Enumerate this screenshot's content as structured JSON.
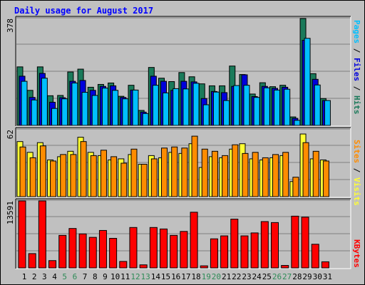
{
  "title": "Daily usage for August 2017",
  "colors": {
    "hits": "#1a7a5a",
    "files": "#0000dd",
    "pages": "#00bfff",
    "visits": "#ffff33",
    "sites": "#ff8c00",
    "kbytes": "#ff0000",
    "weekend_tick": "#2e8b57",
    "weekday_tick": "#000000",
    "panel_bg": "#c0c0c0",
    "grid": "#808080"
  },
  "legends": {
    "top": [
      {
        "text": "Pages",
        "color": "#00bfff"
      },
      {
        "text": " / ",
        "color": "#000000"
      },
      {
        "text": "Files",
        "color": "#0000dd"
      },
      {
        "text": " / ",
        "color": "#000000"
      },
      {
        "text": "Hits",
        "color": "#1a7a5a"
      }
    ],
    "mid": [
      {
        "text": "Sites",
        "color": "#ff8c00"
      },
      {
        "text": " / ",
        "color": "#000000"
      },
      {
        "text": "Visits",
        "color": "#ffff33"
      }
    ],
    "bottom": [
      {
        "text": "KBytes",
        "color": "#ff0000"
      }
    ]
  },
  "chart_data": {
    "type": "bar",
    "categories": [
      "1",
      "2",
      "3",
      "4",
      "5",
      "6",
      "7",
      "8",
      "9",
      "10",
      "11",
      "12",
      "13",
      "14",
      "15",
      "16",
      "17",
      "18",
      "19",
      "20",
      "21",
      "22",
      "23",
      "24",
      "25",
      "26",
      "27",
      "28",
      "29",
      "30",
      "31"
    ],
    "weekend_days": [
      "5",
      "6",
      "12",
      "13",
      "19",
      "20",
      "26",
      "27"
    ],
    "panels": [
      {
        "name": "hits-files-pages",
        "ymax": 378,
        "max_label": "378",
        "series": [
          {
            "name": "Hits",
            "values": [
              207,
              124,
              207,
              105,
              106,
              189,
              199,
              135,
              145,
              150,
              103,
              142,
              53,
              205,
              167,
              155,
              187,
              172,
              147,
              140,
              140,
              210,
              180,
              111,
              151,
              137,
              142,
              30,
              378,
              183,
              95
            ]
          },
          {
            "name": "Files",
            "values": [
              174,
              99,
              184,
              82,
              98,
              156,
              159,
              124,
              138,
              140,
              99,
              125,
              47,
              174,
              156,
              124,
              156,
              154,
              95,
              120,
              116,
              138,
              179,
              102,
              138,
              131,
              135,
              25,
              301,
              163,
              88
            ]
          },
          {
            "name": "Pages",
            "values": [
              156,
              90,
              167,
              60,
              94,
              150,
              117,
              106,
              132,
              124,
              94,
              125,
              42,
              142,
              115,
              130,
              129,
              149,
              73,
              118,
              88,
              141,
              142,
              99,
              133,
              125,
              128,
              18,
              308,
              143,
              88
            ]
          }
        ]
      },
      {
        "name": "visits-sites",
        "ymax": 62,
        "max_label": "62",
        "series": [
          {
            "name": "Visits",
            "values": [
              51,
              41,
              50,
              34,
              37,
              42,
              55,
              41,
              38,
              34,
              35,
              39,
              30,
              38,
              36,
              41,
              40,
              49,
              27,
              37,
              36,
              44,
              49,
              35,
              34,
              36,
              38,
              14,
              58,
              35,
              34
            ]
          },
          {
            "name": "Sites",
            "values": [
              46,
              36,
              47,
              33,
              39,
              39,
              51,
              38,
              43,
              37,
              31,
              44,
              30,
              35,
              45,
              46,
              45,
              56,
              44,
              42,
              38,
              48,
              40,
              41,
              36,
              39,
              41,
              18,
              50,
              42,
              33
            ]
          }
        ]
      },
      {
        "name": "kbytes",
        "ymax": 13591,
        "max_label": "13591",
        "series": [
          {
            "name": "KBytes",
            "values": [
              13591,
              2900,
              13591,
              1480,
              6600,
              8000,
              6900,
              6200,
              7600,
              6000,
              1310,
              8200,
              620,
              8200,
              7900,
              6600,
              7400,
              11300,
              420,
              5900,
              6500,
              9900,
              6500,
              7100,
              9400,
              9200,
              500,
              10500,
              10300,
              4800,
              1240
            ]
          }
        ]
      }
    ]
  }
}
